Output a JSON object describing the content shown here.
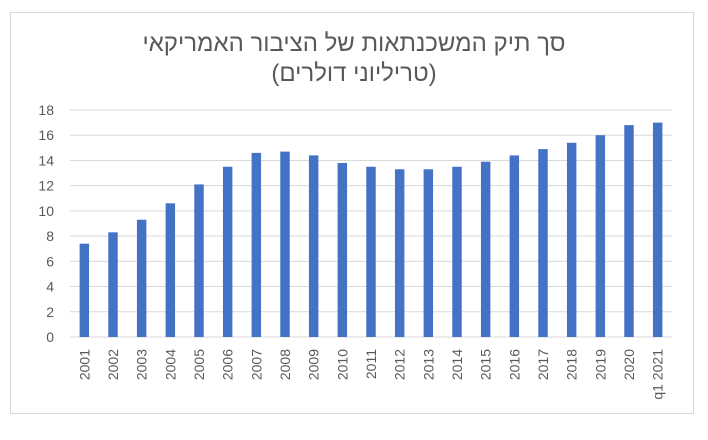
{
  "chart_data": {
    "type": "bar",
    "title_lines": [
      "סך תיק המשכנתאות של הציבור האמריקאי",
      "(טריליוני דולרים)"
    ],
    "categories": [
      "2001",
      "2002",
      "2003",
      "2004",
      "2005",
      "2006",
      "2007",
      "2008",
      "2009",
      "2010",
      "2011",
      "2012",
      "2013",
      "2014",
      "2015",
      "2016",
      "2017",
      "2018",
      "2019",
      "2020",
      "q1 2021"
    ],
    "values": [
      7.4,
      8.3,
      9.3,
      10.6,
      12.1,
      13.5,
      14.6,
      14.7,
      14.4,
      13.8,
      13.5,
      13.3,
      13.3,
      13.5,
      13.9,
      14.4,
      14.9,
      15.4,
      16.0,
      16.8,
      17.0
    ],
    "ylim": [
      0,
      18
    ],
    "yticks": [
      0,
      2,
      4,
      6,
      8,
      10,
      12,
      14,
      16,
      18
    ],
    "grid": true,
    "bar_color": "#4472c4"
  }
}
